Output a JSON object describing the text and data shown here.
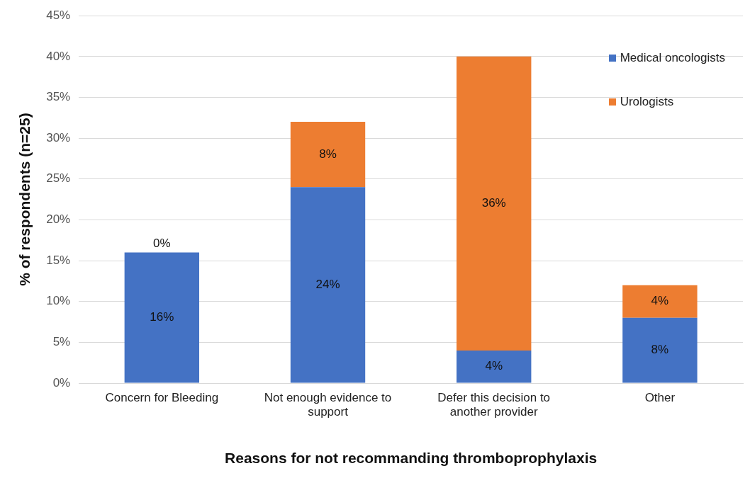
{
  "chart_data": {
    "type": "bar",
    "stacked": true,
    "xlabel": "Reasons for not recommanding thromboprophylaxis",
    "ylabel": "% of respondents (n=25)",
    "categories": [
      "Concern for Bleeding",
      "Not enough evidence to support",
      "Defer this decision to another provider",
      "Other"
    ],
    "series": [
      {
        "name": "Medical oncologists",
        "color": "#4472c4",
        "values": [
          16,
          24,
          4,
          8
        ],
        "value_labels": [
          "16%",
          "24%",
          "4%",
          "8%"
        ]
      },
      {
        "name": "Urologists",
        "color": "#ed7d31",
        "values": [
          0,
          8,
          36,
          4
        ],
        "value_labels": [
          "0%",
          "8%",
          "36%",
          "4%"
        ]
      }
    ],
    "ylim": [
      0,
      45
    ],
    "yticks": [
      {
        "value": 0,
        "label": "0%"
      },
      {
        "value": 5,
        "label": "5%"
      },
      {
        "value": 10,
        "label": "10%"
      },
      {
        "value": 15,
        "label": "15%"
      },
      {
        "value": 20,
        "label": "20%"
      },
      {
        "value": 25,
        "label": "25%"
      },
      {
        "value": 30,
        "label": "30%"
      },
      {
        "value": 35,
        "label": "35%"
      },
      {
        "value": 40,
        "label": "40%"
      },
      {
        "value": 45,
        "label": "45%"
      }
    ],
    "grid": "y",
    "legend": "top right"
  }
}
